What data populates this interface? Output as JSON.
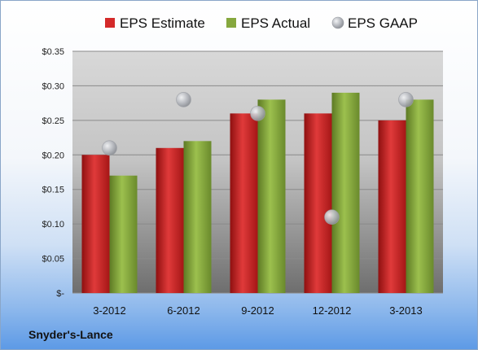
{
  "company": "Snyder's-Lance",
  "colors": {
    "estimate": "#d42a2a",
    "actual": "#86a83e",
    "gaap": "#b9bcc2"
  },
  "chart_data": {
    "type": "bar",
    "categories": [
      "3-2012",
      "6-2012",
      "9-2012",
      "12-2012",
      "3-2013"
    ],
    "series": [
      {
        "name": "EPS Estimate",
        "type": "bar",
        "values": [
          0.2,
          0.21,
          0.26,
          0.26,
          0.25
        ]
      },
      {
        "name": "EPS Actual",
        "type": "bar",
        "values": [
          0.17,
          0.22,
          0.28,
          0.29,
          0.28
        ]
      },
      {
        "name": "EPS GAAP",
        "type": "scatter",
        "values": [
          0.21,
          0.28,
          0.26,
          0.11,
          0.28
        ]
      }
    ],
    "ylim": [
      0,
      0.35
    ],
    "yticks": [
      0,
      0.05,
      0.1,
      0.15,
      0.2,
      0.25,
      0.3,
      0.35
    ],
    "ytick_labels": [
      "$-",
      "$0.05",
      "$0.10",
      "$0.15",
      "$0.20",
      "$0.25",
      "$0.30",
      "$0.35"
    ],
    "legend_position": "top",
    "grid": true
  }
}
